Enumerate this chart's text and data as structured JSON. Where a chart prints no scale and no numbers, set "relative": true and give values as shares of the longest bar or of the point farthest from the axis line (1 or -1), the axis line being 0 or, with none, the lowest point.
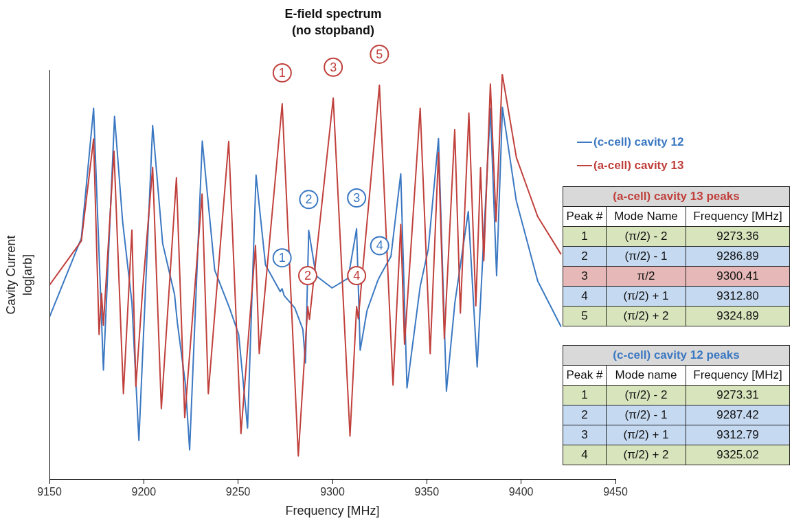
{
  "chart_data": {
    "type": "line",
    "title": "E-field spectrum",
    "subtitle": "(no stopband)",
    "xlabel": "Frequency [MHz]",
    "ylabel": "Cavity Current log[arb]",
    "relative": true,
    "xlim": [
      9150,
      9450
    ],
    "xticks": [
      9150,
      9200,
      9250,
      9300,
      9350,
      9400,
      9450
    ],
    "grid": false,
    "legend": "right",
    "marker": "none",
    "line_style": "solid",
    "series": [
      {
        "name": "(c-cell) cavity 12",
        "color": "#3b78c2",
        "x": [
          9150,
          9166.9,
          9173.4,
          9178.6,
          9184.5,
          9188.8,
          9193.7,
          9197.4,
          9204.7,
          9210,
          9216.3,
          9217.8,
          9222,
          9224.3,
          9231,
          9237.6,
          9245.4,
          9250.3,
          9255,
          9259.5,
          9264.5,
          9272.3,
          9273.31,
          9274.4,
          9280,
          9284.3,
          9285.7,
          9287.42,
          9291.3,
          9299.8,
          9308.3,
          9312.79,
          9314.7,
          9318.3,
          9324,
          9325.02,
          9331,
          9336.2,
          9339.5,
          9346.5,
          9350.8,
          9356.2,
          9360.4,
          9364.9,
          9372,
          9376.7,
          9383.7,
          9387,
          9390.1,
          9397.4,
          9408.8,
          9421.2
        ],
        "values": [
          0.4,
          0.595,
          0.916,
          0.269,
          0.896,
          0.635,
          0.436,
          0.095,
          0.873,
          0.582,
          0.456,
          0.386,
          0.237,
          0.072,
          0.835,
          0.516,
          0.423,
          0.357,
          0.126,
          0.751,
          0.529,
          0.463,
          0.47,
          0.453,
          0.423,
          0.37,
          0.287,
          0.614,
          0.502,
          0.472,
          0.496,
          0.618,
          0.318,
          0.416,
          0.49,
          0.5,
          0.55,
          0.754,
          0.225,
          0.476,
          0.568,
          0.841,
          0.217,
          0.436,
          0.661,
          0.277,
          0.916,
          0.502,
          0.918,
          0.688,
          0.489,
          0.376
        ]
      },
      {
        "name": "(a-cell) cavity 13",
        "color": "#c0403c",
        "x": [
          9150,
          9166.9,
          9173.4,
          9176.3,
          9177.6,
          9178.6,
          9184.2,
          9189.2,
          9193.7,
          9195.8,
          9199.4,
          9204.7,
          9209.3,
          9217.3,
          9221.7,
          9230.9,
          9234.2,
          9245,
          9251.5,
          9259.2,
          9261.2,
          9273.36,
          9281.9,
          9286.89,
          9287.8,
          9300.41,
          9309.3,
          9312.8,
          9313.7,
          9324.89,
          9332.1,
          9336.2,
          9338.2,
          9346.5,
          9351.8,
          9356.2,
          9359.3,
          9364.8,
          9367.8,
          9372.3,
          9376,
          9378.5,
          9380.2,
          9383.7,
          9386.7,
          9390,
          9397.5,
          9408.8,
          9421.2
        ],
        "values": [
          0.479,
          0.588,
          0.84,
          0.357,
          0.459,
          0.38,
          0.81,
          0.211,
          0.615,
          0.229,
          0.469,
          0.77,
          0.174,
          0.744,
          0.152,
          0.704,
          0.211,
          0.834,
          0.112,
          0.577,
          0.31,
          0.927,
          0.057,
          0.426,
          0.394,
          0.941,
          0.106,
          0.426,
          0.396,
          0.973,
          0.232,
          0.629,
          0.333,
          0.916,
          0.31,
          0.807,
          0.347,
          0.863,
          0.41,
          0.904,
          0.428,
          0.769,
          0.539,
          0.976,
          0.636,
          1,
          0.794,
          0.648,
          0.555
        ]
      }
    ],
    "annotations": [
      "(a-cell) cavity 13 peaks",
      "Peak #",
      "Mode Name",
      "Frequency [MHz]",
      "1",
      "(π/2) - 2",
      "9273.36",
      "2",
      "(π/2) - 1",
      "9286.89",
      "3",
      "π/2",
      "9300.41",
      "4",
      "(π/2) + 1",
      "9312.80",
      "5",
      "(π/2) + 2",
      "9324.89",
      "(c-cell) cavity 12 peaks",
      "Peak #",
      "Mode name",
      "Frequency [MHz]",
      "1",
      "(π/2) - 2",
      "9273.31",
      "2",
      "(π/2) - 1",
      "9287.42",
      "3",
      "(π/2) + 1",
      "9312.79",
      "4",
      "(π/2) + 2",
      "9325.02",
      {
        "text": "1",
        "x": 9273.36,
        "y": 0.927
      },
      {
        "text": "2",
        "x": 9286.89,
        "y": 0.426
      },
      {
        "text": "3",
        "x": 9300.41,
        "y": 0.941
      },
      {
        "text": "4",
        "x": 9312.8,
        "y": 0.426
      },
      {
        "text": "5",
        "x": 9324.89,
        "y": 0.973
      },
      {
        "text": "1",
        "x": 9273.31,
        "y": 0.47
      },
      {
        "text": "2",
        "x": 9287.42,
        "y": 0.614
      },
      {
        "text": "3",
        "x": 9312.79,
        "y": 0.618
      },
      {
        "text": "4",
        "x": 9325.02,
        "y": 0.5
      }
    ]
  }
}
